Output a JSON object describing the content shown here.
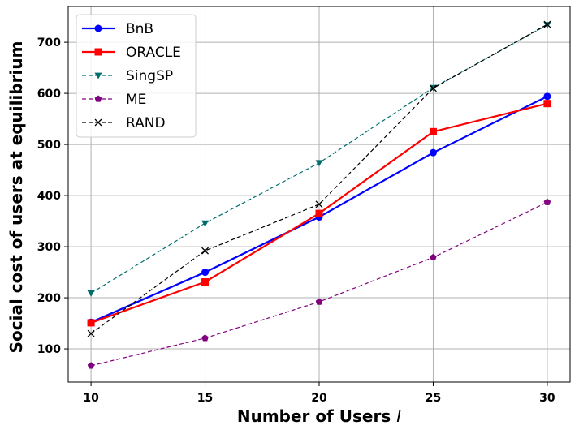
{
  "chart_data": {
    "type": "line",
    "title": "",
    "xlabel": "Number of Users",
    "xlabel_symbol": "I",
    "ylabel": "Social cost of users at equilibrium",
    "x": [
      10,
      15,
      20,
      25,
      30
    ],
    "xlim": [
      9,
      31
    ],
    "ylim": [
      35,
      770
    ],
    "xticks": [
      "10",
      "15",
      "20",
      "25",
      "30"
    ],
    "yticks": [
      "100",
      "200",
      "300",
      "400",
      "500",
      "600",
      "700"
    ],
    "grid": true,
    "legend_position": "top-left",
    "series": [
      {
        "name": "BnB",
        "values": [
          152,
          250,
          358,
          484,
          594
        ],
        "color": "#0000ff",
        "marker": "circle",
        "dash": "solid"
      },
      {
        "name": "ORACLE",
        "values": [
          151,
          231,
          365,
          525,
          580
        ],
        "color": "#ff0000",
        "marker": "square",
        "dash": "solid"
      },
      {
        "name": "SingSP",
        "values": [
          209,
          346,
          464,
          611,
          734
        ],
        "color": "#006d6d",
        "marker": "triangle-down",
        "dash": "dashed"
      },
      {
        "name": "ME",
        "values": [
          67,
          121,
          192,
          279,
          387
        ],
        "color": "#800080",
        "marker": "pentagon",
        "dash": "dashed"
      },
      {
        "name": "RAND",
        "values": [
          130,
          292,
          383,
          610,
          735
        ],
        "color": "#000000",
        "marker": "x",
        "dash": "dashed"
      }
    ]
  }
}
